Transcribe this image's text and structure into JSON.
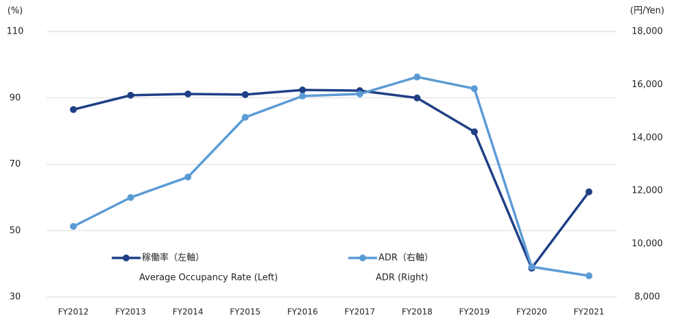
{
  "chart_data": {
    "type": "line",
    "y_label": "(%)",
    "y2_label": "(円/Yen)",
    "categories": [
      "FY2012",
      "FY2013",
      "FY2014",
      "FY2015",
      "FY2016",
      "FY2017",
      "FY2018",
      "FY2019",
      "FY2020",
      "FY2021"
    ],
    "series": [
      {
        "name": "稼働率（左軸）",
        "name_en": "Average Occupancy Rate (Left)",
        "color": "#1f3f86",
        "axis": "y",
        "values": [
          86.5,
          90.8,
          91.2,
          91.0,
          92.4,
          92.2,
          90.0,
          79.8,
          38.7,
          61.7
        ]
      },
      {
        "name": "ADR（右軸）",
        "name_en": "ADR (Right)",
        "color": "#5b9bd5",
        "axis": "y2",
        "values": [
          10660,
          11750,
          12520,
          14770,
          15570,
          15650,
          16290,
          15850,
          9140,
          8800
        ]
      }
    ],
    "ylim": [
      30,
      110
    ],
    "yticks": [
      30,
      50,
      70,
      90,
      110
    ],
    "y2lim": [
      8000,
      18000
    ],
    "y2ticks": [
      {
        "value": 8000,
        "label": "8,000"
      },
      {
        "value": 10000,
        "label": "10,000"
      },
      {
        "value": 12000,
        "label": "12,000"
      },
      {
        "value": 14000,
        "label": "14,000"
      },
      {
        "value": 16000,
        "label": "16,000"
      },
      {
        "value": 18000,
        "label": "18,000"
      }
    ],
    "grid": true
  }
}
